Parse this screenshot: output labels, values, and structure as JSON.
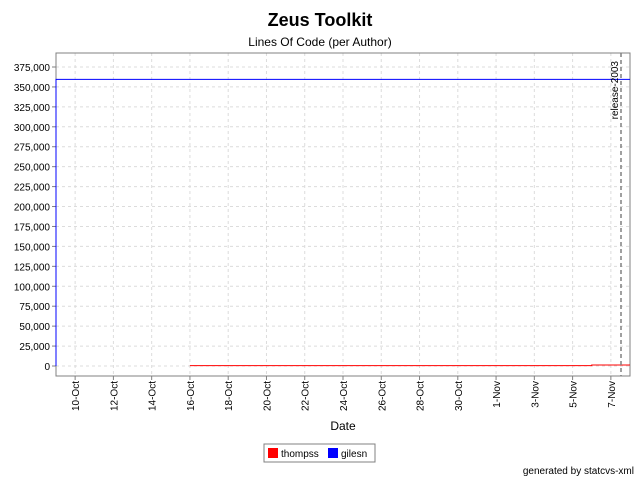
{
  "chart_data": {
    "type": "line",
    "title": "Zeus Toolkit",
    "subtitle": "Lines Of Code (per Author)",
    "xlabel": "Date",
    "ylabel": "",
    "ylim": [
      0,
      375000
    ],
    "xlim": [
      "2003-10-09",
      "2003-11-08"
    ],
    "y_ticks": [
      0,
      25000,
      50000,
      75000,
      100000,
      125000,
      150000,
      175000,
      200000,
      225000,
      250000,
      275000,
      300000,
      325000,
      350000,
      375000
    ],
    "y_tick_labels": [
      "0",
      "25,000",
      "50,000",
      "75,000",
      "100,000",
      "125,000",
      "150,000",
      "175,000",
      "200,000",
      "225,000",
      "250,000",
      "275,000",
      "300,000",
      "325,000",
      "350,000",
      "375,000"
    ],
    "x_ticks": [
      "2003-10-10",
      "2003-10-12",
      "2003-10-14",
      "2003-10-16",
      "2003-10-18",
      "2003-10-20",
      "2003-10-22",
      "2003-10-24",
      "2003-10-26",
      "2003-10-28",
      "2003-10-30",
      "2003-11-01",
      "2003-11-03",
      "2003-11-05",
      "2003-11-07"
    ],
    "x_tick_labels": [
      "10-Oct",
      "12-Oct",
      "14-Oct",
      "16-Oct",
      "18-Oct",
      "20-Oct",
      "22-Oct",
      "24-Oct",
      "26-Oct",
      "28-Oct",
      "30-Oct",
      "1-Nov",
      "3-Nov",
      "5-Nov",
      "7-Nov"
    ],
    "grid": true,
    "legend_position": "bottom",
    "series": [
      {
        "name": "thompss",
        "color": "#ff0000",
        "points": [
          {
            "x": "2003-10-16",
            "y": 500
          },
          {
            "x": "2003-11-06",
            "y": 500
          },
          {
            "x": "2003-11-06",
            "y": 1200
          },
          {
            "x": "2003-11-08",
            "y": 1200
          }
        ]
      },
      {
        "name": "gilesn",
        "color": "#0000ff",
        "points": [
          {
            "x": "2003-10-09",
            "y": 0
          },
          {
            "x": "2003-10-09",
            "y": 359500
          },
          {
            "x": "2003-11-08",
            "y": 359500
          }
        ]
      }
    ],
    "annotations": [
      {
        "x": "2003-11-08",
        "label": "release-2003"
      }
    ]
  },
  "footer": "generated by statcvs-xml"
}
